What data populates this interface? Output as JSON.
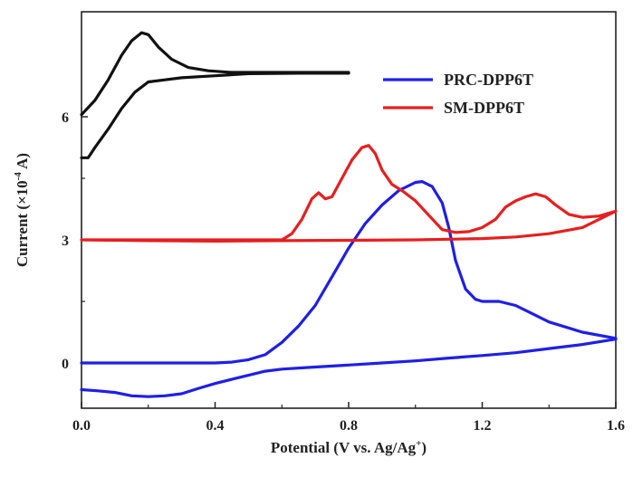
{
  "chart_data": {
    "type": "line",
    "xlabel": "Potential (V vs. Ag/Ag",
    "xlabel_sup": "+",
    "xlabel_end": ")",
    "ylabel_main": "Current (×10",
    "ylabel_sup": "-4",
    "ylabel_end": " A)",
    "xlim": [
      0.0,
      1.6
    ],
    "ylim": [
      -1.0,
      10.5
    ],
    "xticks": [
      0.0,
      0.4,
      0.8,
      1.2,
      1.6
    ],
    "xtick_labels": [
      "0.0",
      "0.4",
      "0.8",
      "1.2",
      "1.6"
    ],
    "yticks": [
      0,
      3,
      6
    ],
    "ytick_labels": [
      "0",
      "3",
      "6"
    ],
    "grid": false,
    "legend_position": "top-right",
    "series": [
      {
        "name": "PRC-DPP6T",
        "color": "#1f1fe6",
        "in_legend": true,
        "x": [
          0.0,
          0.1,
          0.2,
          0.3,
          0.4,
          0.45,
          0.5,
          0.55,
          0.6,
          0.65,
          0.7,
          0.75,
          0.8,
          0.85,
          0.9,
          0.95,
          1.0,
          1.02,
          1.05,
          1.08,
          1.1,
          1.12,
          1.15,
          1.18,
          1.2,
          1.25,
          1.3,
          1.35,
          1.4,
          1.5,
          1.6,
          1.6,
          1.5,
          1.4,
          1.3,
          1.2,
          1.1,
          1.0,
          0.9,
          0.8,
          0.7,
          0.6,
          0.55,
          0.5,
          0.45,
          0.4,
          0.35,
          0.3,
          0.25,
          0.2,
          0.15,
          0.1,
          0.05,
          0.0
        ],
        "y": [
          0.0,
          0.0,
          0.0,
          0.0,
          0.0,
          0.02,
          0.08,
          0.2,
          0.5,
          0.9,
          1.4,
          2.1,
          2.8,
          3.4,
          3.85,
          4.2,
          4.4,
          4.42,
          4.3,
          3.9,
          3.3,
          2.5,
          1.8,
          1.55,
          1.5,
          1.5,
          1.4,
          1.2,
          1.0,
          0.75,
          0.6,
          0.58,
          0.45,
          0.35,
          0.25,
          0.18,
          0.12,
          0.05,
          0.0,
          -0.05,
          -0.1,
          -0.15,
          -0.2,
          -0.3,
          -0.4,
          -0.5,
          -0.62,
          -0.75,
          -0.8,
          -0.82,
          -0.8,
          -0.72,
          -0.68,
          -0.65
        ]
      },
      {
        "name": "SM-DPP6T",
        "color": "#e61f1f",
        "in_legend": true,
        "x": [
          0.0,
          0.2,
          0.4,
          0.6,
          0.63,
          0.66,
          0.69,
          0.71,
          0.73,
          0.75,
          0.78,
          0.81,
          0.84,
          0.86,
          0.88,
          0.9,
          0.93,
          0.96,
          1.0,
          1.04,
          1.08,
          1.12,
          1.16,
          1.2,
          1.24,
          1.27,
          1.3,
          1.33,
          1.36,
          1.39,
          1.42,
          1.46,
          1.5,
          1.55,
          1.6,
          1.6,
          1.5,
          1.4,
          1.3,
          1.2,
          1.0,
          0.8,
          0.6,
          0.4,
          0.2,
          0.0
        ],
        "y": [
          3.0,
          3.0,
          3.0,
          3.0,
          3.15,
          3.5,
          4.0,
          4.15,
          4.0,
          4.05,
          4.5,
          4.95,
          5.25,
          5.3,
          5.1,
          4.7,
          4.35,
          4.2,
          3.95,
          3.6,
          3.25,
          3.18,
          3.2,
          3.3,
          3.5,
          3.8,
          3.95,
          4.05,
          4.12,
          4.05,
          3.85,
          3.62,
          3.55,
          3.58,
          3.7,
          3.7,
          3.3,
          3.15,
          3.07,
          3.03,
          3.0,
          2.99,
          2.98,
          2.97,
          2.98,
          3.0
        ]
      },
      {
        "name": "",
        "color": "#111111",
        "in_legend": false,
        "x": [
          0.0,
          0.04,
          0.08,
          0.12,
          0.15,
          0.18,
          0.2,
          0.23,
          0.27,
          0.32,
          0.38,
          0.45,
          0.55,
          0.65,
          0.8,
          0.8,
          0.65,
          0.5,
          0.4,
          0.3,
          0.25,
          0.2,
          0.16,
          0.12,
          0.08,
          0.04,
          0.02,
          0.0
        ],
        "y": [
          6.05,
          6.4,
          6.9,
          7.5,
          7.85,
          8.05,
          8.0,
          7.7,
          7.4,
          7.2,
          7.12,
          7.08,
          7.08,
          7.08,
          7.08,
          7.06,
          7.06,
          7.05,
          7.0,
          6.95,
          6.9,
          6.85,
          6.6,
          6.2,
          5.7,
          5.25,
          5.0,
          5.0
        ]
      }
    ]
  }
}
